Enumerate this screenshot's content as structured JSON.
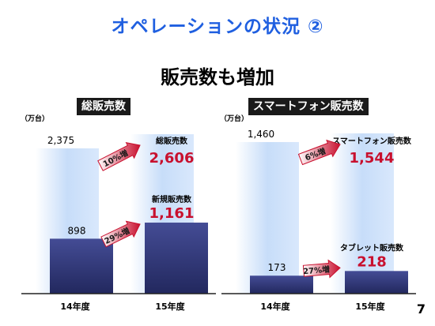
{
  "page": {
    "title": "オペレーションの状況 ②",
    "subtitle": "販売数も増加",
    "page_number": "7"
  },
  "chart_data": [
    {
      "type": "bar",
      "title": "総販売数",
      "unit": "（万台）",
      "categories": [
        "14年度",
        "15年度"
      ],
      "series": [
        {
          "name": "総販売数",
          "values": [
            2375,
            2606
          ],
          "labels": [
            "2,375",
            "2,606"
          ]
        },
        {
          "name": "新規販売数",
          "values": [
            898,
            1161
          ],
          "labels": [
            "898",
            "1,161"
          ]
        }
      ],
      "growth": [
        "10%増",
        "29%増"
      ],
      "ylim": [
        0,
        2800
      ]
    },
    {
      "type": "bar",
      "title": "スマートフォン販売数",
      "unit": "（万台）",
      "categories": [
        "14年度",
        "15年度"
      ],
      "series": [
        {
          "name": "スマートフォン販売数",
          "values": [
            1460,
            1544
          ],
          "labels": [
            "1,460",
            "1,544"
          ]
        },
        {
          "name": "タブレット販売数",
          "values": [
            173,
            218
          ],
          "labels": [
            "173",
            "218"
          ]
        }
      ],
      "growth": [
        "6%増",
        "27%増"
      ],
      "ylim": [
        0,
        1650
      ]
    }
  ],
  "colors": {
    "title": "#1f5fe0",
    "highlight": "#c8102e",
    "light_bar": "#cfe3fb",
    "dark_bar": "#333a80",
    "arrow": "#c8102e"
  }
}
